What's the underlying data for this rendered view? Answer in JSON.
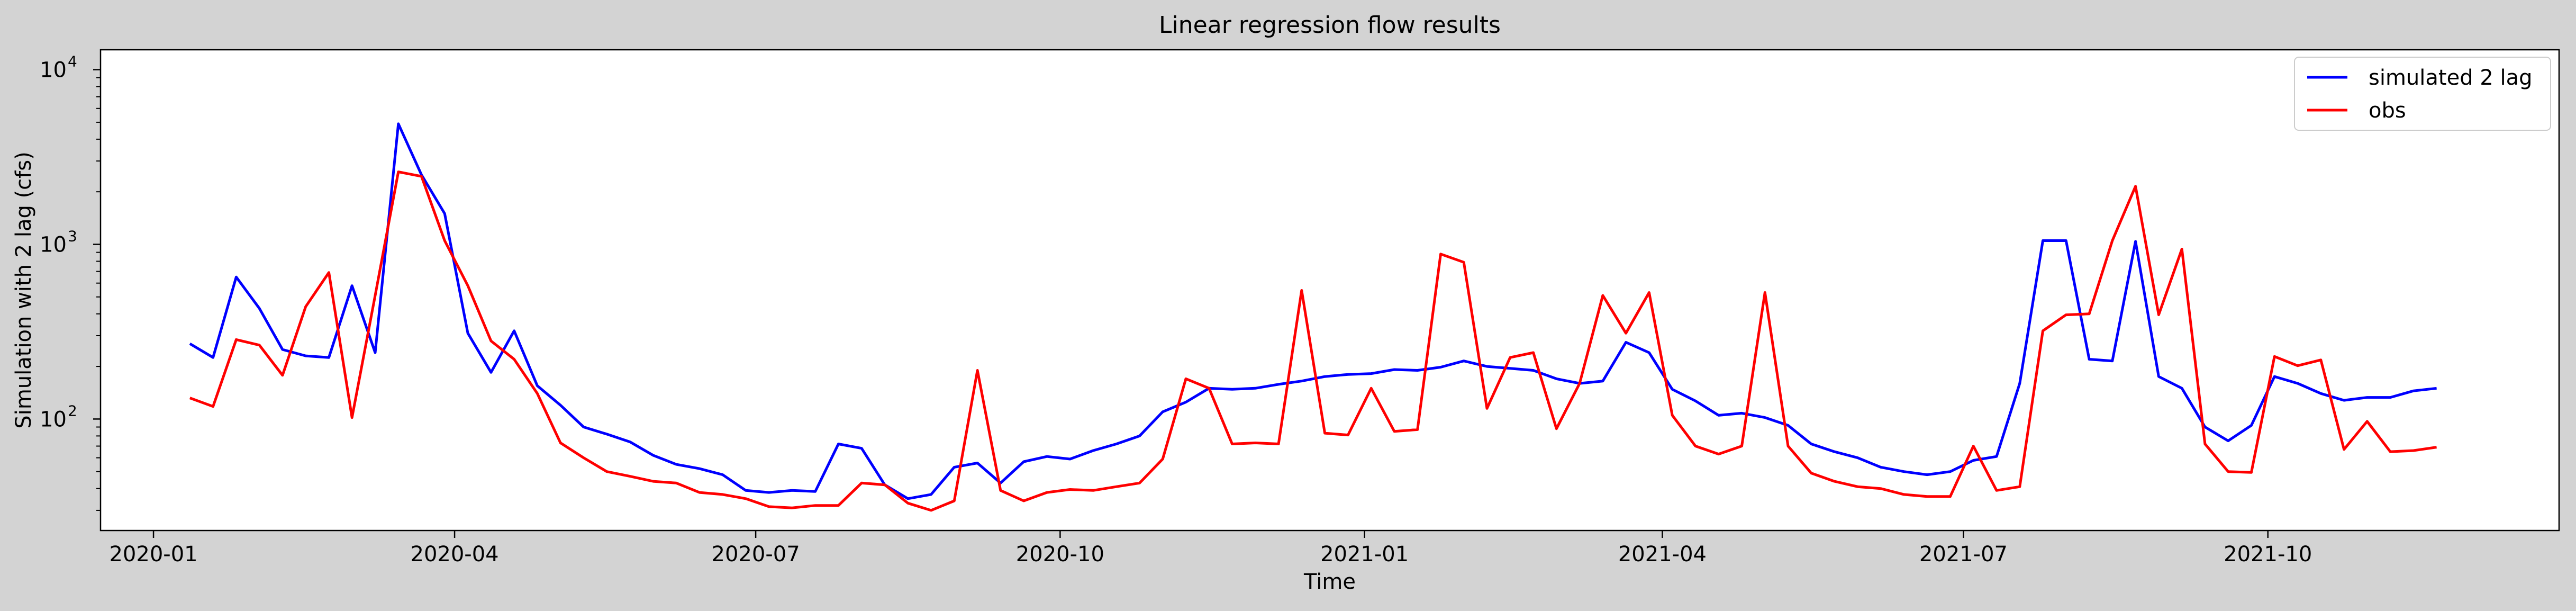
{
  "chart_data": {
    "type": "line",
    "title": "Linear regression flow results",
    "xlabel": "Time",
    "ylabel": "Simulation with 2 lag (cfs)",
    "yscale": "log",
    "ylim": [
      23,
      13000
    ],
    "xlim": [
      "2019-12-16",
      "2021-12-28"
    ],
    "x_ticks": [
      "2020-01",
      "2020-04",
      "2020-07",
      "2020-10",
      "2021-01",
      "2021-04",
      "2021-07",
      "2021-10"
    ],
    "y_ticks": [
      {
        "value": 100,
        "label": "10",
        "exp": "2"
      },
      {
        "value": 1000,
        "label": "10",
        "exp": "3"
      },
      {
        "value": 10000,
        "label": "10",
        "exp": "4"
      }
    ],
    "grid": false,
    "legend": "top-right",
    "dates": [
      "2020-01-12",
      "2020-01-19",
      "2020-01-26",
      "2020-02-02",
      "2020-02-09",
      "2020-02-16",
      "2020-02-23",
      "2020-03-01",
      "2020-03-08",
      "2020-03-15",
      "2020-03-22",
      "2020-03-29",
      "2020-04-05",
      "2020-04-12",
      "2020-04-19",
      "2020-04-26",
      "2020-05-03",
      "2020-05-10",
      "2020-05-17",
      "2020-05-24",
      "2020-05-31",
      "2020-06-07",
      "2020-06-14",
      "2020-06-21",
      "2020-06-28",
      "2020-07-05",
      "2020-07-12",
      "2020-07-19",
      "2020-07-26",
      "2020-08-02",
      "2020-08-09",
      "2020-08-16",
      "2020-08-23",
      "2020-08-30",
      "2020-09-06",
      "2020-09-13",
      "2020-09-20",
      "2020-09-27",
      "2020-10-04",
      "2020-10-11",
      "2020-10-18",
      "2020-10-25",
      "2020-11-01",
      "2020-11-08",
      "2020-11-15",
      "2020-11-22",
      "2020-11-29",
      "2020-12-06",
      "2020-12-13",
      "2020-12-20",
      "2020-12-27",
      "2021-01-03",
      "2021-01-10",
      "2021-01-17",
      "2021-01-24",
      "2021-01-31",
      "2021-02-07",
      "2021-02-14",
      "2021-02-21",
      "2021-02-28",
      "2021-03-07",
      "2021-03-14",
      "2021-03-21",
      "2021-03-28",
      "2021-04-04",
      "2021-04-11",
      "2021-04-18",
      "2021-04-25",
      "2021-05-02",
      "2021-05-09",
      "2021-05-16",
      "2021-05-23",
      "2021-05-30",
      "2021-06-06",
      "2021-06-13",
      "2021-06-20",
      "2021-06-27",
      "2021-07-04",
      "2021-07-11",
      "2021-07-18",
      "2021-07-25",
      "2021-08-01",
      "2021-08-08",
      "2021-08-15",
      "2021-08-22",
      "2021-08-29",
      "2021-09-05",
      "2021-09-12",
      "2021-09-19",
      "2021-09-26",
      "2021-10-03",
      "2021-10-10",
      "2021-10-17",
      "2021-10-24",
      "2021-10-31",
      "2021-11-07",
      "2021-11-14",
      "2021-11-21"
    ],
    "series": [
      {
        "name": "simulated 2 lag",
        "color": "#0000ff",
        "values": [
          270,
          225,
          650,
          430,
          250,
          230,
          225,
          580,
          240,
          4900,
          2500,
          1500,
          310,
          185,
          320,
          155,
          120,
          90,
          82,
          74,
          62,
          55,
          52,
          48,
          39,
          38,
          39,
          38.5,
          72,
          68,
          42,
          35,
          37,
          53,
          56,
          43,
          57,
          61,
          59,
          66,
          72,
          80,
          110,
          125,
          150,
          148,
          150,
          158,
          165,
          175,
          180,
          182,
          192,
          190,
          198,
          215,
          200,
          195,
          190,
          170,
          160,
          165,
          275,
          240,
          148,
          127,
          105,
          108,
          102,
          92,
          72,
          65,
          60,
          53,
          50,
          48,
          50,
          58,
          61,
          160,
          1050,
          1050,
          220,
          215,
          1040,
          175,
          150,
          90,
          75,
          92,
          175,
          160,
          140,
          128,
          133,
          133,
          145,
          150
        ]
      },
      {
        "name": "obs",
        "color": "#ff0000",
        "values": [
          132,
          118,
          285,
          265,
          178,
          440,
          690,
          102,
          510,
          2600,
          2450,
          1050,
          580,
          280,
          220,
          140,
          73,
          60,
          50,
          47,
          44,
          43,
          38,
          37,
          35,
          31.5,
          31,
          32,
          32,
          43,
          42,
          33,
          30,
          34,
          190,
          39,
          34,
          38,
          39.5,
          39,
          41,
          43,
          59,
          170,
          150,
          72,
          73,
          72,
          545,
          83,
          81,
          150,
          85,
          87,
          880,
          790,
          115,
          225,
          240,
          88,
          160,
          510,
          310,
          530,
          105,
          70,
          63,
          70,
          530,
          70,
          49,
          44,
          41,
          40,
          37,
          36,
          36,
          70,
          39,
          41,
          320,
          395,
          400,
          1050,
          2150,
          395,
          940,
          72,
          50,
          49.5,
          228,
          202,
          218,
          67,
          97,
          65,
          66,
          69
        ]
      }
    ]
  }
}
